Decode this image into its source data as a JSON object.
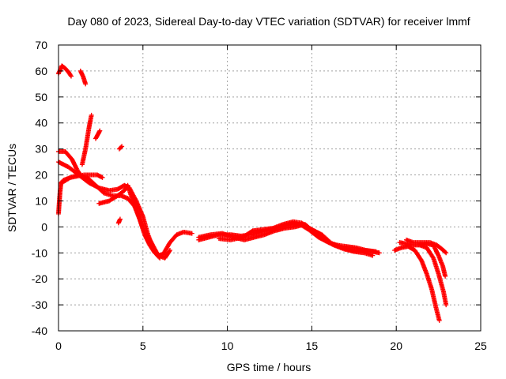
{
  "chart_data": {
    "type": "scatter",
    "title": "Day 080 of 2023, Sidereal Day-to-day VTEC variation (SDTVAR) for receiver lmmf",
    "xlabel": "GPS time / hours",
    "ylabel": "SDTVAR / TECUs",
    "xlim": [
      0,
      25
    ],
    "ylim": [
      -40,
      70
    ],
    "x_ticks": [
      0,
      5,
      10,
      15,
      20,
      25
    ],
    "y_ticks": [
      -40,
      -30,
      -20,
      -10,
      0,
      10,
      20,
      30,
      40,
      50,
      60,
      70
    ],
    "grid": true,
    "marker": "+",
    "series_color": "#ff0000",
    "series": [
      {
        "name": "arc-early-peak",
        "points": [
          [
            0,
            59
          ],
          [
            0.2,
            62
          ],
          [
            0.4,
            61
          ],
          [
            0.6,
            59.5
          ],
          [
            0.75,
            58
          ]
        ]
      },
      {
        "name": "arc-early-descend",
        "points": [
          [
            1.3,
            60
          ],
          [
            1.45,
            58
          ],
          [
            1.6,
            55
          ]
        ]
      },
      {
        "name": "arc-rise-a",
        "points": [
          [
            1.4,
            24
          ],
          [
            1.6,
            30
          ],
          [
            1.8,
            38
          ],
          [
            1.95,
            43
          ]
        ]
      },
      {
        "name": "arc-rise-b",
        "points": [
          [
            2.2,
            34
          ],
          [
            2.45,
            37
          ]
        ]
      },
      {
        "name": "arc-short-1",
        "points": [
          [
            3.6,
            30
          ],
          [
            3.75,
            31
          ]
        ]
      },
      {
        "name": "arc-short-2",
        "points": [
          [
            3.55,
            1.5
          ],
          [
            3.65,
            3
          ]
        ]
      },
      {
        "name": "arc-start-low",
        "points": [
          [
            0,
            5
          ],
          [
            0.05,
            10
          ],
          [
            0.1,
            14
          ],
          [
            0.15,
            17
          ],
          [
            0.3,
            18
          ],
          [
            0.7,
            19
          ],
          [
            1.5,
            20
          ],
          [
            2.3,
            20
          ],
          [
            2.6,
            19
          ]
        ]
      },
      {
        "name": "arc-hump",
        "points": [
          [
            0,
            29
          ],
          [
            0.4,
            29
          ],
          [
            0.8,
            26
          ],
          [
            1.1,
            22
          ],
          [
            1.3,
            20
          ]
        ]
      },
      {
        "name": "arc-main",
        "points": [
          [
            0,
            25
          ],
          [
            0.6,
            23
          ],
          [
            1.2,
            20
          ],
          [
            1.8,
            17
          ],
          [
            2.4,
            15
          ],
          [
            3,
            14
          ],
          [
            3.5,
            14.5
          ],
          [
            3.9,
            16
          ],
          [
            4.2,
            15
          ],
          [
            4.6,
            10
          ],
          [
            5,
            4
          ],
          [
            5.3,
            -3
          ],
          [
            5.6,
            -8
          ],
          [
            5.9,
            -11
          ],
          [
            6.2,
            -10.5
          ],
          [
            6.6,
            -6
          ],
          [
            7,
            -3
          ],
          [
            7.4,
            -2
          ],
          [
            7.9,
            -2.5
          ]
        ]
      },
      {
        "name": "arc-second",
        "points": [
          [
            0.2,
            17
          ],
          [
            0.7,
            19
          ],
          [
            1.2,
            20
          ],
          [
            1.7,
            19
          ],
          [
            2.2,
            16
          ],
          [
            2.7,
            13
          ],
          [
            3.2,
            12
          ],
          [
            3.7,
            12
          ],
          [
            4.1,
            11
          ],
          [
            4.5,
            8
          ],
          [
            4.8,
            3
          ],
          [
            5.1,
            -3
          ],
          [
            5.4,
            -7
          ],
          [
            5.7,
            -10
          ],
          [
            6,
            -12
          ]
        ]
      },
      {
        "name": "arc-dip",
        "points": [
          [
            2.4,
            9
          ],
          [
            3,
            10
          ],
          [
            3.5,
            12
          ],
          [
            3.9,
            14
          ],
          [
            4.1,
            16
          ],
          [
            4.3,
            12
          ],
          [
            4.7,
            5
          ],
          [
            5.1,
            -2
          ],
          [
            5.5,
            -6
          ],
          [
            5.9,
            -11
          ],
          [
            6.3,
            -12
          ],
          [
            6.6,
            -9
          ]
        ]
      },
      {
        "name": "arc-mid-a",
        "points": [
          [
            8.3,
            -5
          ],
          [
            8.9,
            -4
          ],
          [
            9.5,
            -3
          ],
          [
            10.2,
            -3
          ],
          [
            10.8,
            -3.5
          ],
          [
            11.4,
            -3
          ],
          [
            12,
            -2
          ],
          [
            12.6,
            -1
          ],
          [
            13.2,
            0
          ],
          [
            13.8,
            1
          ],
          [
            14.3,
            1
          ],
          [
            14.8,
            -1
          ],
          [
            15.4,
            -4
          ],
          [
            16,
            -6
          ],
          [
            16.5,
            -7
          ],
          [
            17,
            -7.5
          ],
          [
            17.6,
            -8
          ],
          [
            18.2,
            -9
          ],
          [
            18.8,
            -9.5
          ]
        ]
      },
      {
        "name": "arc-mid-b",
        "points": [
          [
            8.3,
            -4
          ],
          [
            9,
            -3
          ],
          [
            9.7,
            -2.5
          ],
          [
            10.4,
            -4
          ],
          [
            11,
            -5
          ],
          [
            11.6,
            -4
          ],
          [
            12.2,
            -3
          ],
          [
            12.8,
            -1.5
          ],
          [
            13.4,
            -0.5
          ],
          [
            14,
            0
          ],
          [
            14.6,
            1
          ],
          [
            15.1,
            -2
          ],
          [
            15.7,
            -5
          ],
          [
            16.3,
            -7
          ],
          [
            16.9,
            -8.5
          ],
          [
            17.5,
            -9.5
          ],
          [
            18.1,
            -10
          ],
          [
            18.6,
            -11
          ]
        ]
      },
      {
        "name": "arc-mid-c",
        "points": [
          [
            9.5,
            -4.5
          ],
          [
            10.2,
            -5
          ],
          [
            10.9,
            -4
          ],
          [
            11.5,
            -1.5
          ],
          [
            12.1,
            -1
          ],
          [
            12.7,
            -0.5
          ],
          [
            13.3,
            1
          ],
          [
            13.9,
            2
          ],
          [
            14.4,
            1.5
          ],
          [
            15,
            -1
          ],
          [
            15.6,
            -3
          ],
          [
            16.2,
            -6.5
          ],
          [
            16.8,
            -8
          ],
          [
            17.4,
            -9
          ],
          [
            18,
            -9
          ],
          [
            18.6,
            -9.5
          ],
          [
            19,
            -10
          ]
        ]
      },
      {
        "name": "arc-late-a",
        "points": [
          [
            19.9,
            -9
          ],
          [
            20.3,
            -8
          ],
          [
            20.7,
            -7.5
          ],
          [
            21.1,
            -9
          ],
          [
            21.5,
            -13
          ],
          [
            21.8,
            -18
          ],
          [
            22.1,
            -24
          ],
          [
            22.35,
            -31
          ],
          [
            22.55,
            -36
          ]
        ]
      },
      {
        "name": "arc-late-b",
        "points": [
          [
            20.2,
            -6
          ],
          [
            20.6,
            -6.5
          ],
          [
            21,
            -7
          ],
          [
            21.4,
            -7
          ],
          [
            21.8,
            -8
          ],
          [
            22.2,
            -12
          ],
          [
            22.5,
            -18
          ],
          [
            22.8,
            -25
          ],
          [
            22.95,
            -30
          ]
        ]
      },
      {
        "name": "arc-late-c",
        "points": [
          [
            21.4,
            -7
          ],
          [
            21.8,
            -6.5
          ],
          [
            22.2,
            -7
          ],
          [
            22.5,
            -11
          ],
          [
            22.75,
            -15
          ],
          [
            22.9,
            -19
          ]
        ]
      },
      {
        "name": "arc-late-d",
        "points": [
          [
            20.6,
            -5
          ],
          [
            21,
            -6
          ],
          [
            21.5,
            -6
          ],
          [
            22,
            -6
          ],
          [
            22.4,
            -7
          ],
          [
            22.7,
            -8.5
          ],
          [
            22.95,
            -10
          ]
        ]
      }
    ]
  }
}
